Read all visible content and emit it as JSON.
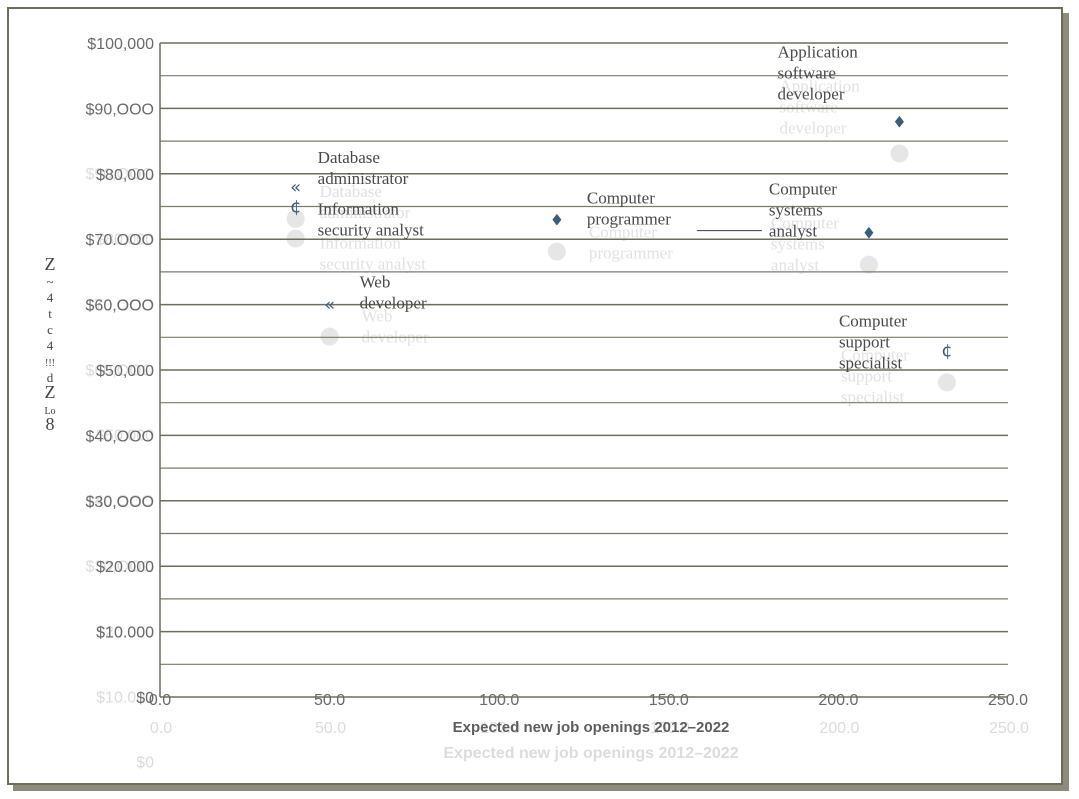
{
  "chart_data": {
    "type": "scatter",
    "title": "",
    "xlabel": "Expected new job openings 2012–2022",
    "ylabel": "Z ~ 4 t c 4 !!! d Z Lo 8",
    "xlim": [
      0,
      250
    ],
    "ylim": [
      0,
      100000
    ],
    "x_ticks": [
      "0.0",
      "50.0",
      "100.0",
      "150.0",
      "200.0",
      "250.0"
    ],
    "y_ticks": [
      "$0",
      "$10.000",
      "$20.000",
      "$30,OOO",
      "$40,OOO",
      "$50,000",
      "$60,OOO",
      "$70.OOO",
      "$80,000",
      "$90,OOO",
      "$100,000"
    ],
    "grid": true,
    "legend": "none",
    "marker_color": "#3b5f7a",
    "series": [
      {
        "values": [
          {
            "x": 40,
            "y": 78000,
            "label": "Database administrator",
            "marker": "«"
          },
          {
            "x": 40,
            "y": 75000,
            "label": "Information security analyst",
            "marker": "¢"
          },
          {
            "x": 50,
            "y": 60000,
            "label": "Web developer",
            "marker": "«"
          },
          {
            "x": 117,
            "y": 73000,
            "label": "Computer programmer",
            "marker": "♦"
          },
          {
            "x": 209,
            "y": 71000,
            "label": "Computer systems analyst",
            "marker": "♦"
          },
          {
            "x": 218,
            "y": 88000,
            "label": "Application software developer",
            "marker": "♦"
          },
          {
            "x": 232,
            "y": 53000,
            "label": "Computer support specialist",
            "marker": "¢"
          }
        ]
      }
    ]
  }
}
